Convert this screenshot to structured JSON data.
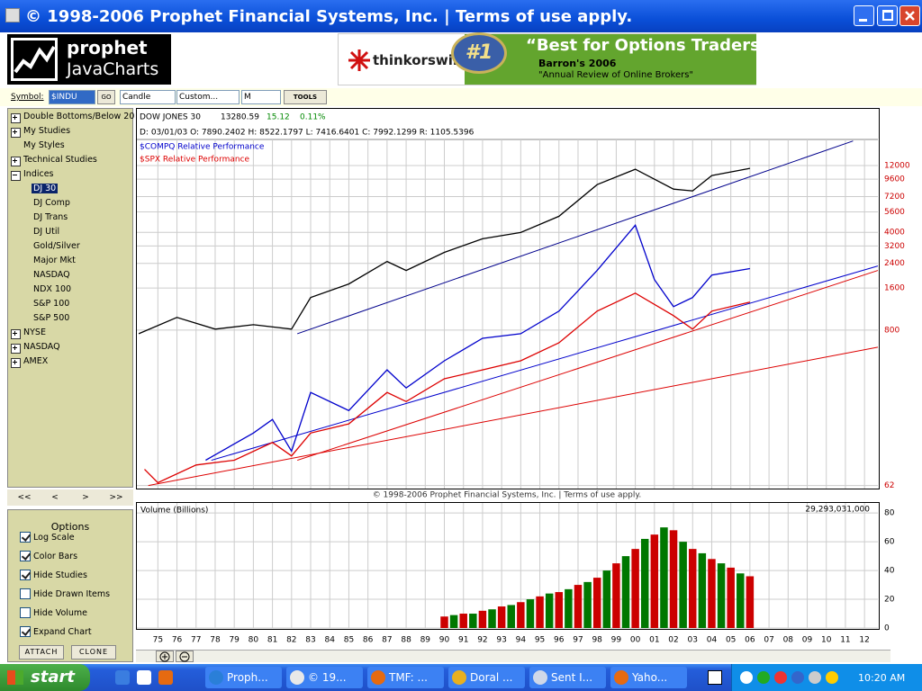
{
  "window": {
    "title": "© 1998-2006 Prophet Financial Systems, Inc. | Terms of use apply."
  },
  "logo": {
    "brand": "prophet",
    "product": "JavaCharts"
  },
  "ad": {
    "brand": "thinkorswim",
    "badge": "#1",
    "headline": "“Best for Options Traders”",
    "source": "Barron's 2006",
    "quote": "\"Annual Review of Online Brokers\""
  },
  "toolbar": {
    "symbol_label": "Symbol:",
    "symbol": "$INDU",
    "go": "GO",
    "chart_type": "Candle",
    "range": "Custom...",
    "period": "M",
    "tools": "TOOLS"
  },
  "tree": {
    "items": [
      {
        "label": "Double Bottoms/Below 20",
        "collapsed": true
      },
      {
        "label": "My Studies",
        "collapsed": true
      },
      {
        "label": "My Styles"
      },
      {
        "label": "Technical Studies",
        "collapsed": true
      },
      {
        "label": "Indices",
        "collapsed": false,
        "children": [
          {
            "label": "DJ 30",
            "selected": true
          },
          {
            "label": "DJ Comp"
          },
          {
            "label": "DJ Trans"
          },
          {
            "label": "DJ Util"
          },
          {
            "label": "Gold/Silver"
          },
          {
            "label": "Major Mkt"
          },
          {
            "label": "NASDAQ"
          },
          {
            "label": "NDX 100"
          },
          {
            "label": "S&P 100"
          },
          {
            "label": "S&P 500"
          }
        ]
      },
      {
        "label": "NYSE",
        "collapsed": true
      },
      {
        "label": "NASDAQ",
        "collapsed": true
      },
      {
        "label": "AMEX",
        "collapsed": true
      }
    ]
  },
  "nav": [
    "<<",
    "<",
    ">",
    ">>"
  ],
  "options": {
    "title": "Options",
    "items": [
      {
        "label": "Log Scale",
        "checked": true
      },
      {
        "label": "Color Bars",
        "checked": true
      },
      {
        "label": "Hide Studies",
        "checked": true
      },
      {
        "label": "Hide Drawn Items",
        "checked": false
      },
      {
        "label": "Hide Volume",
        "checked": false
      },
      {
        "label": "Expand Chart",
        "checked": true
      }
    ],
    "buttons": [
      "ATTACH",
      "CLONE"
    ]
  },
  "chart_data": [
    {
      "type": "line",
      "log_scale": true,
      "grid": true,
      "header": {
        "name": "DOW JONES 30",
        "last": "13280.59",
        "change": "15.12",
        "change_pct": "0.11%",
        "ohlc": "D: 03/01/03  O: 7890.2402  H: 8522.1797  L: 7416.6401  C: 7992.1299  R: 1105.5396"
      },
      "footer": "© 1998-2006 Prophet Financial Systems, Inc. | Terms of use apply.",
      "xlim": [
        1973.9,
        2012.7
      ],
      "ylim": [
        59,
        18450
      ],
      "yticks": [
        12000,
        9600,
        7200,
        5600,
        4000,
        3200,
        2400,
        1600,
        800,
        62
      ],
      "tick_color": "#cc0000",
      "xticks": [
        {
          "value": 1975,
          "label": "75"
        },
        {
          "value": 1976,
          "label": "76"
        },
        {
          "value": 1977,
          "label": "77"
        },
        {
          "value": 1978,
          "label": "78"
        },
        {
          "value": 1979,
          "label": "79"
        },
        {
          "value": 1980,
          "label": "80"
        },
        {
          "value": 1981,
          "label": "81"
        },
        {
          "value": 1982,
          "label": "82"
        },
        {
          "value": 1983,
          "label": "83"
        },
        {
          "value": 1984,
          "label": "84"
        },
        {
          "value": 1985,
          "label": "85"
        },
        {
          "value": 1986,
          "label": "86"
        },
        {
          "value": 1987,
          "label": "87"
        },
        {
          "value": 1988,
          "label": "88"
        },
        {
          "value": 1989,
          "label": "89"
        },
        {
          "value": 1990,
          "label": "90"
        },
        {
          "value": 1991,
          "label": "91"
        },
        {
          "value": 1992,
          "label": "92"
        },
        {
          "value": 1993,
          "label": "93"
        },
        {
          "value": 1994,
          "label": "94"
        },
        {
          "value": 1995,
          "label": "95"
        },
        {
          "value": 1996,
          "label": "96"
        },
        {
          "value": 1997,
          "label": "97"
        },
        {
          "value": 1998,
          "label": "98"
        },
        {
          "value": 1999,
          "label": "99"
        },
        {
          "value": 2000,
          "label": "00"
        },
        {
          "value": 2001,
          "label": "01"
        },
        {
          "value": 2002,
          "label": "02"
        },
        {
          "value": 2003,
          "label": "03"
        },
        {
          "value": 2004,
          "label": "04"
        },
        {
          "value": 2005,
          "label": "05"
        },
        {
          "value": 2006,
          "label": "06"
        },
        {
          "value": 2007,
          "label": "07"
        },
        {
          "value": 2008,
          "label": "08"
        },
        {
          "value": 2009,
          "label": "09"
        },
        {
          "value": 2010,
          "label": "10"
        },
        {
          "value": 2011,
          "label": "11"
        },
        {
          "value": 2012,
          "label": "12"
        }
      ],
      "series": [
        {
          "color": "#000000",
          "x": [
            1974,
            1976,
            1978,
            1980,
            1982,
            1983,
            1985,
            1987,
            1988,
            1990,
            1992,
            1994,
            1996,
            1998,
            2000,
            2002,
            2003,
            2004,
            2006
          ],
          "values": [
            754,
            986,
            813,
            875,
            813,
            1368,
            1710,
            2478,
            2137,
            2877,
            3597,
            3990,
            5212,
            8770,
            11300,
            8150,
            7910,
            10190,
            11470
          ]
        },
        {
          "name": "$COMPQ Relative Performance",
          "color": "#0000cc",
          "x": [
            1977.5,
            1980,
            1981,
            1982,
            1983,
            1985,
            1987,
            1988,
            1990,
            1992,
            1994,
            1996,
            1998,
            2000,
            2001,
            2002,
            2003,
            2004,
            2006
          ],
          "values": [
            94,
            147,
            184,
            109,
            287,
            213,
            416,
            309,
            483,
            700,
            754,
            1094,
            2137,
            4497,
            1840,
            1178,
            1368,
            1982,
            2203
          ]
        },
        {
          "name": "$SPX Relative Performance",
          "color": "#dd0000",
          "x": [
            1974.3,
            1975,
            1977,
            1979,
            1981,
            1982,
            1983,
            1985,
            1987,
            1988,
            1990,
            1992,
            1994,
            1996,
            1998,
            2000,
            2002,
            2003,
            2004,
            2006
          ],
          "values": [
            81,
            65,
            87,
            94,
            126,
            101,
            147,
            171,
            287,
            247,
            359,
            416,
            483,
            650,
            1094,
            1472,
            1016,
            813,
            1094,
            1271
          ]
        }
      ],
      "drawn_lines": [
        {
          "color": "#00008b",
          "x": [
            1982.3,
            2011.4
          ],
          "values": [
            754,
            18000
          ]
        },
        {
          "color": "#0000cc",
          "x": [
            1977.8,
            2012.7
          ],
          "values": [
            94,
            2300
          ]
        },
        {
          "color": "#dd0000",
          "x": [
            1982.3,
            2012.7
          ],
          "values": [
            94,
            2137
          ]
        },
        {
          "color": "#dd0000",
          "x": [
            1974.5,
            2012.7
          ],
          "values": [
            62,
            604
          ]
        }
      ]
    },
    {
      "type": "bar",
      "title": "Volume (Billions)",
      "total": "29,293,031,000",
      "grid": true,
      "xlim": [
        1973.9,
        2012.7
      ],
      "ylim": [
        0,
        87
      ],
      "yticks": [
        0,
        20,
        40,
        60,
        80
      ],
      "colors": [
        "#cc0000",
        "#007700"
      ],
      "x": [
        1990,
        1990.5,
        1991,
        1991.5,
        1992,
        1992.5,
        1993,
        1993.5,
        1994,
        1994.5,
        1995,
        1995.5,
        1996,
        1996.5,
        1997,
        1997.5,
        1998,
        1998.5,
        1999,
        1999.5,
        2000,
        2000.5,
        2001,
        2001.5,
        2002,
        2002.5,
        2003,
        2003.5,
        2004,
        2004.5,
        2005,
        2005.5,
        2006
      ],
      "values": [
        8,
        9,
        10,
        10,
        12,
        13,
        15,
        16,
        18,
        20,
        22,
        24,
        25,
        27,
        30,
        32,
        35,
        40,
        45,
        50,
        55,
        62,
        65,
        70,
        68,
        60,
        55,
        52,
        48,
        45,
        42,
        38,
        36
      ]
    }
  ],
  "taskbar": {
    "start": "start",
    "items": [
      "Proph...",
      "© 19...",
      "TMF: ...",
      "Doral ...",
      "Sent I...",
      "Yaho..."
    ],
    "clock": "10:20 AM"
  }
}
